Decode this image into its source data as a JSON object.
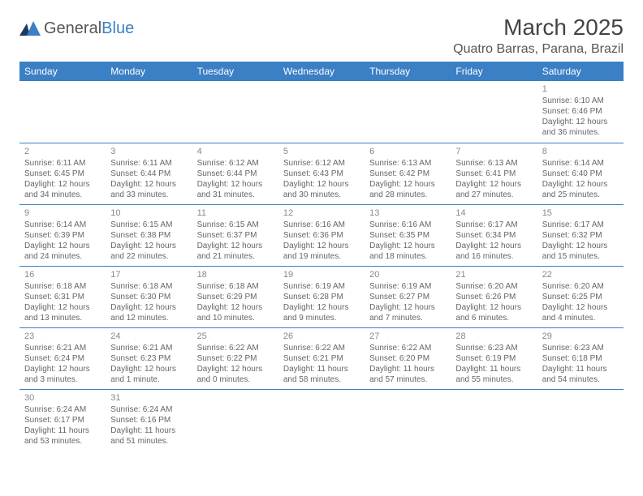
{
  "logo": {
    "text1": "General",
    "text2": "Blue"
  },
  "title": "March 2025",
  "location": "Quatro Barras, Parana, Brazil",
  "day_headers": [
    "Sunday",
    "Monday",
    "Tuesday",
    "Wednesday",
    "Thursday",
    "Friday",
    "Saturday"
  ],
  "colors": {
    "header_bg": "#3b7fc4",
    "header_text": "#ffffff",
    "border": "#3b7fc4",
    "background": "#ffffff",
    "text": "#666666"
  },
  "typography": {
    "title_fontsize": 28,
    "location_fontsize": 16,
    "header_fontsize": 12,
    "daynum_fontsize": 11,
    "cell_fontsize": 10
  },
  "weeks": [
    [
      null,
      null,
      null,
      null,
      null,
      null,
      {
        "n": "1",
        "sunrise": "Sunrise: 6:10 AM",
        "sunset": "Sunset: 6:46 PM",
        "daylight1": "Daylight: 12 hours",
        "daylight2": "and 36 minutes."
      }
    ],
    [
      {
        "n": "2",
        "sunrise": "Sunrise: 6:11 AM",
        "sunset": "Sunset: 6:45 PM",
        "daylight1": "Daylight: 12 hours",
        "daylight2": "and 34 minutes."
      },
      {
        "n": "3",
        "sunrise": "Sunrise: 6:11 AM",
        "sunset": "Sunset: 6:44 PM",
        "daylight1": "Daylight: 12 hours",
        "daylight2": "and 33 minutes."
      },
      {
        "n": "4",
        "sunrise": "Sunrise: 6:12 AM",
        "sunset": "Sunset: 6:44 PM",
        "daylight1": "Daylight: 12 hours",
        "daylight2": "and 31 minutes."
      },
      {
        "n": "5",
        "sunrise": "Sunrise: 6:12 AM",
        "sunset": "Sunset: 6:43 PM",
        "daylight1": "Daylight: 12 hours",
        "daylight2": "and 30 minutes."
      },
      {
        "n": "6",
        "sunrise": "Sunrise: 6:13 AM",
        "sunset": "Sunset: 6:42 PM",
        "daylight1": "Daylight: 12 hours",
        "daylight2": "and 28 minutes."
      },
      {
        "n": "7",
        "sunrise": "Sunrise: 6:13 AM",
        "sunset": "Sunset: 6:41 PM",
        "daylight1": "Daylight: 12 hours",
        "daylight2": "and 27 minutes."
      },
      {
        "n": "8",
        "sunrise": "Sunrise: 6:14 AM",
        "sunset": "Sunset: 6:40 PM",
        "daylight1": "Daylight: 12 hours",
        "daylight2": "and 25 minutes."
      }
    ],
    [
      {
        "n": "9",
        "sunrise": "Sunrise: 6:14 AM",
        "sunset": "Sunset: 6:39 PM",
        "daylight1": "Daylight: 12 hours",
        "daylight2": "and 24 minutes."
      },
      {
        "n": "10",
        "sunrise": "Sunrise: 6:15 AM",
        "sunset": "Sunset: 6:38 PM",
        "daylight1": "Daylight: 12 hours",
        "daylight2": "and 22 minutes."
      },
      {
        "n": "11",
        "sunrise": "Sunrise: 6:15 AM",
        "sunset": "Sunset: 6:37 PM",
        "daylight1": "Daylight: 12 hours",
        "daylight2": "and 21 minutes."
      },
      {
        "n": "12",
        "sunrise": "Sunrise: 6:16 AM",
        "sunset": "Sunset: 6:36 PM",
        "daylight1": "Daylight: 12 hours",
        "daylight2": "and 19 minutes."
      },
      {
        "n": "13",
        "sunrise": "Sunrise: 6:16 AM",
        "sunset": "Sunset: 6:35 PM",
        "daylight1": "Daylight: 12 hours",
        "daylight2": "and 18 minutes."
      },
      {
        "n": "14",
        "sunrise": "Sunrise: 6:17 AM",
        "sunset": "Sunset: 6:34 PM",
        "daylight1": "Daylight: 12 hours",
        "daylight2": "and 16 minutes."
      },
      {
        "n": "15",
        "sunrise": "Sunrise: 6:17 AM",
        "sunset": "Sunset: 6:32 PM",
        "daylight1": "Daylight: 12 hours",
        "daylight2": "and 15 minutes."
      }
    ],
    [
      {
        "n": "16",
        "sunrise": "Sunrise: 6:18 AM",
        "sunset": "Sunset: 6:31 PM",
        "daylight1": "Daylight: 12 hours",
        "daylight2": "and 13 minutes."
      },
      {
        "n": "17",
        "sunrise": "Sunrise: 6:18 AM",
        "sunset": "Sunset: 6:30 PM",
        "daylight1": "Daylight: 12 hours",
        "daylight2": "and 12 minutes."
      },
      {
        "n": "18",
        "sunrise": "Sunrise: 6:18 AM",
        "sunset": "Sunset: 6:29 PM",
        "daylight1": "Daylight: 12 hours",
        "daylight2": "and 10 minutes."
      },
      {
        "n": "19",
        "sunrise": "Sunrise: 6:19 AM",
        "sunset": "Sunset: 6:28 PM",
        "daylight1": "Daylight: 12 hours",
        "daylight2": "and 9 minutes."
      },
      {
        "n": "20",
        "sunrise": "Sunrise: 6:19 AM",
        "sunset": "Sunset: 6:27 PM",
        "daylight1": "Daylight: 12 hours",
        "daylight2": "and 7 minutes."
      },
      {
        "n": "21",
        "sunrise": "Sunrise: 6:20 AM",
        "sunset": "Sunset: 6:26 PM",
        "daylight1": "Daylight: 12 hours",
        "daylight2": "and 6 minutes."
      },
      {
        "n": "22",
        "sunrise": "Sunrise: 6:20 AM",
        "sunset": "Sunset: 6:25 PM",
        "daylight1": "Daylight: 12 hours",
        "daylight2": "and 4 minutes."
      }
    ],
    [
      {
        "n": "23",
        "sunrise": "Sunrise: 6:21 AM",
        "sunset": "Sunset: 6:24 PM",
        "daylight1": "Daylight: 12 hours",
        "daylight2": "and 3 minutes."
      },
      {
        "n": "24",
        "sunrise": "Sunrise: 6:21 AM",
        "sunset": "Sunset: 6:23 PM",
        "daylight1": "Daylight: 12 hours",
        "daylight2": "and 1 minute."
      },
      {
        "n": "25",
        "sunrise": "Sunrise: 6:22 AM",
        "sunset": "Sunset: 6:22 PM",
        "daylight1": "Daylight: 12 hours",
        "daylight2": "and 0 minutes."
      },
      {
        "n": "26",
        "sunrise": "Sunrise: 6:22 AM",
        "sunset": "Sunset: 6:21 PM",
        "daylight1": "Daylight: 11 hours",
        "daylight2": "and 58 minutes."
      },
      {
        "n": "27",
        "sunrise": "Sunrise: 6:22 AM",
        "sunset": "Sunset: 6:20 PM",
        "daylight1": "Daylight: 11 hours",
        "daylight2": "and 57 minutes."
      },
      {
        "n": "28",
        "sunrise": "Sunrise: 6:23 AM",
        "sunset": "Sunset: 6:19 PM",
        "daylight1": "Daylight: 11 hours",
        "daylight2": "and 55 minutes."
      },
      {
        "n": "29",
        "sunrise": "Sunrise: 6:23 AM",
        "sunset": "Sunset: 6:18 PM",
        "daylight1": "Daylight: 11 hours",
        "daylight2": "and 54 minutes."
      }
    ],
    [
      {
        "n": "30",
        "sunrise": "Sunrise: 6:24 AM",
        "sunset": "Sunset: 6:17 PM",
        "daylight1": "Daylight: 11 hours",
        "daylight2": "and 53 minutes."
      },
      {
        "n": "31",
        "sunrise": "Sunrise: 6:24 AM",
        "sunset": "Sunset: 6:16 PM",
        "daylight1": "Daylight: 11 hours",
        "daylight2": "and 51 minutes."
      },
      null,
      null,
      null,
      null,
      null
    ]
  ]
}
